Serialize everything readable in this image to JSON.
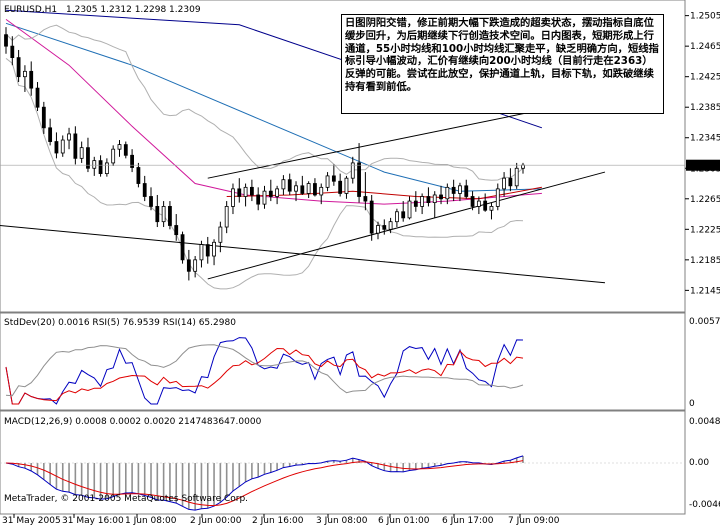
{
  "chart_data": [
    {
      "panel": "price",
      "type": "candlestick",
      "header": {
        "symbol": "EURUSD,H1",
        "ohlc": "1.2305 1.2312 1.2298 1.2309"
      },
      "y_ticks": [
        "1.2505",
        "1.2465",
        "1.2425",
        "1.2385",
        "1.2345",
        "1.2305",
        "1.2265",
        "1.2225",
        "1.2185",
        "1.2145"
      ],
      "y_range": [
        1.2135,
        1.2515
      ],
      "current_price_label": "1.2309",
      "candles": [
        [
          1.248,
          1.249,
          1.2455,
          1.2465
        ],
        [
          1.2465,
          1.2478,
          1.244,
          1.245
        ],
        [
          1.245,
          1.246,
          1.2418,
          1.2425
        ],
        [
          1.2425,
          1.244,
          1.2405,
          1.2432
        ],
        [
          1.2432,
          1.2445,
          1.24,
          1.241
        ],
        [
          1.241,
          1.2418,
          1.238,
          1.2385
        ],
        [
          1.2385,
          1.2392,
          1.235,
          1.2358
        ],
        [
          1.2358,
          1.237,
          1.2335,
          1.234
        ],
        [
          1.234,
          1.2352,
          1.2318,
          1.2325
        ],
        [
          1.2325,
          1.2348,
          1.232,
          1.2342
        ],
        [
          1.2342,
          1.2358,
          1.233,
          1.235
        ],
        [
          1.235,
          1.236,
          1.231,
          1.2318
        ],
        [
          1.2318,
          1.234,
          1.2312,
          1.2332
        ],
        [
          1.2332,
          1.2345,
          1.23,
          1.2305
        ],
        [
          1.2305,
          1.232,
          1.2295,
          1.2315
        ],
        [
          1.2315,
          1.2322,
          1.2294,
          1.2298
        ],
        [
          1.2298,
          1.2318,
          1.2294,
          1.2312
        ],
        [
          1.2312,
          1.2335,
          1.2308,
          1.233
        ],
        [
          1.233,
          1.2342,
          1.232,
          1.2336
        ],
        [
          1.2336,
          1.234,
          1.2318,
          1.2322
        ],
        [
          1.2322,
          1.233,
          1.23,
          1.2306
        ],
        [
          1.2306,
          1.2312,
          1.228,
          1.2285
        ],
        [
          1.2285,
          1.2295,
          1.2262,
          1.2268
        ],
        [
          1.2268,
          1.228,
          1.225,
          1.2255
        ],
        [
          1.2255,
          1.227,
          1.2228,
          1.2235
        ],
        [
          1.2235,
          1.2262,
          1.2228,
          1.2255
        ],
        [
          1.2255,
          1.2262,
          1.2225,
          1.223
        ],
        [
          1.223,
          1.2245,
          1.221,
          1.2218
        ],
        [
          1.2218,
          1.2222,
          1.218,
          1.2185
        ],
        [
          1.2185,
          1.2198,
          1.2158,
          1.217
        ],
        [
          1.217,
          1.219,
          1.2162,
          1.2185
        ],
        [
          1.2185,
          1.221,
          1.2175,
          1.2205
        ],
        [
          1.2205,
          1.2215,
          1.218,
          1.219
        ],
        [
          1.219,
          1.2212,
          1.2178,
          1.2208
        ],
        [
          1.2208,
          1.2235,
          1.2195,
          1.2228
        ],
        [
          1.2228,
          1.2262,
          1.222,
          1.2255
        ],
        [
          1.2255,
          1.2285,
          1.2245,
          1.2278
        ],
        [
          1.2278,
          1.2292,
          1.226,
          1.2268
        ],
        [
          1.2268,
          1.2285,
          1.2255,
          1.228
        ],
        [
          1.228,
          1.229,
          1.2262,
          1.227
        ],
        [
          1.227,
          1.228,
          1.225,
          1.2258
        ],
        [
          1.2258,
          1.2282,
          1.2252,
          1.2275
        ],
        [
          1.2275,
          1.229,
          1.2262,
          1.2268
        ],
        [
          1.2268,
          1.2282,
          1.2258,
          1.2278
        ],
        [
          1.2278,
          1.2296,
          1.227,
          1.229
        ],
        [
          1.229,
          1.2298,
          1.227,
          1.2275
        ],
        [
          1.2275,
          1.2288,
          1.2262,
          1.2282
        ],
        [
          1.2282,
          1.2295,
          1.227,
          1.2272
        ],
        [
          1.2272,
          1.2288,
          1.2266,
          1.2285
        ],
        [
          1.2285,
          1.2292,
          1.2268,
          1.227
        ],
        [
          1.227,
          1.2285,
          1.2258,
          1.228
        ],
        [
          1.228,
          1.23,
          1.2275,
          1.2295
        ],
        [
          1.2295,
          1.231,
          1.2282,
          1.2288
        ],
        [
          1.2288,
          1.2298,
          1.2268,
          1.2272
        ],
        [
          1.2272,
          1.2295,
          1.2265,
          1.2292
        ],
        [
          1.2292,
          1.232,
          1.2285,
          1.2312
        ],
        [
          1.2312,
          1.2338,
          1.226,
          1.2268
        ],
        [
          1.2268,
          1.23,
          1.225,
          1.2262
        ],
        [
          1.2262,
          1.227,
          1.221,
          1.222
        ],
        [
          1.222,
          1.2235,
          1.2212,
          1.223
        ],
        [
          1.223,
          1.2238,
          1.2218,
          1.2225
        ],
        [
          1.2225,
          1.224,
          1.222,
          1.2235
        ],
        [
          1.2235,
          1.2252,
          1.2228,
          1.2248
        ],
        [
          1.2248,
          1.2262,
          1.2235,
          1.224
        ],
        [
          1.224,
          1.2268,
          1.2238,
          1.2262
        ],
        [
          1.2262,
          1.2275,
          1.2248,
          1.2255
        ],
        [
          1.2255,
          1.2272,
          1.2245,
          1.2268
        ],
        [
          1.2268,
          1.228,
          1.2255,
          1.226
        ],
        [
          1.226,
          1.2275,
          1.224,
          1.227
        ],
        [
          1.227,
          1.2282,
          1.2258,
          1.2265
        ],
        [
          1.2265,
          1.2285,
          1.2258,
          1.228
        ],
        [
          1.228,
          1.229,
          1.2262,
          1.2272
        ],
        [
          1.2272,
          1.2286,
          1.2262,
          1.2282
        ],
        [
          1.2282,
          1.229,
          1.2265,
          1.2268
        ],
        [
          1.2268,
          1.2275,
          1.225,
          1.2255
        ],
        [
          1.2255,
          1.2268,
          1.2245,
          1.2262
        ],
        [
          1.2262,
          1.2272,
          1.2248,
          1.225
        ],
        [
          1.225,
          1.226,
          1.2238,
          1.2255
        ],
        [
          1.2255,
          1.2285,
          1.225,
          1.2278
        ],
        [
          1.2278,
          1.23,
          1.2268,
          1.2292
        ],
        [
          1.2292,
          1.2305,
          1.2275,
          1.2282
        ],
        [
          1.2282,
          1.2312,
          1.2278,
          1.2305
        ],
        [
          1.2305,
          1.2312,
          1.2298,
          1.2309
        ]
      ],
      "overlays": [
        {
          "name": "blue-ma-upper",
          "color": "#00008b",
          "points": [
            [
              0,
              1.2512
            ],
            [
              37,
              1.2493
            ],
            [
              85,
              1.2358
            ]
          ]
        },
        {
          "name": "steelblue-ma",
          "color": "#1f6fb5",
          "points": [
            [
              0,
              1.2495
            ],
            [
              20,
              1.244
            ],
            [
              40,
              1.237
            ],
            [
              60,
              1.23
            ],
            [
              72,
              1.2275
            ],
            [
              85,
              1.2278
            ]
          ]
        },
        {
          "name": "magenta-ma",
          "color": "#d0189a",
          "points": [
            [
              0,
              1.25
            ],
            [
              10,
              1.244
            ],
            [
              20,
              1.236
            ],
            [
              30,
              1.2285
            ],
            [
              38,
              1.227
            ],
            [
              50,
              1.2262
            ],
            [
              60,
              1.2258
            ],
            [
              70,
              1.2262
            ],
            [
              85,
              1.2272
            ]
          ]
        },
        {
          "name": "red-ma",
          "color": "#c00000",
          "points": [
            [
              35,
              1.2268
            ],
            [
              45,
              1.227
            ],
            [
              55,
              1.2275
            ],
            [
              65,
              1.2268
            ],
            [
              75,
              1.2265
            ],
            [
              85,
              1.228
            ]
          ]
        }
      ],
      "trendlines": [
        {
          "name": "channel-upper",
          "points": [
            [
              32,
              1.2292
            ],
            [
              90,
              1.239
            ]
          ]
        },
        {
          "name": "channel-lower",
          "points": [
            [
              32,
              1.216
            ],
            [
              95,
              1.23
            ]
          ]
        },
        {
          "name": "down-line",
          "points": [
            [
              -1,
              1.223
            ],
            [
              95,
              1.2155
            ]
          ]
        }
      ]
    },
    {
      "panel": "oscillator",
      "type": "line",
      "title": "StdDev(20) 0.0016  RSI(5) 76.9539  RSI(14) 65.2980",
      "y_ticks": [
        "0.0057",
        "0"
      ]
    },
    {
      "panel": "macd",
      "type": "bar",
      "title": "MACD(12,26,9) 0.0008 0.0002 0.0020 2147483647.0000",
      "y_ticks": [
        "0.0048",
        "0.00",
        "-0.0046"
      ],
      "y_range": [
        -0.0052,
        0.0052
      ]
    }
  ],
  "x_ticks": [
    "31 May 2005",
    "31 May 16:00",
    "1 Jun 08:00",
    "2 Jun 00:00",
    "2 Jun 16:00",
    "3 Jun 08:00",
    "6 Jun 01:00",
    "6 Jun 17:00",
    "7 Jun 09:00"
  ],
  "annotation": "日图阴阳交错，修正前期大幅下跌造成的超卖状态，摆动指标自底位缓步回升，为后期继续下行创造技术空间。日内图表，短期形成上行通道，55小时均线和100小时均线汇聚走平，缺乏明确方向，短线指标引导小幅波动，汇价有继续向200小时均线（目前行走在2363）反弹的可能。尝试在此放空，保护通道上轨，目标下轨，如跌破继续持有看到前低。",
  "copyright": "MetaTrader, © 2001-2005 MetaQuotes Software Corp."
}
